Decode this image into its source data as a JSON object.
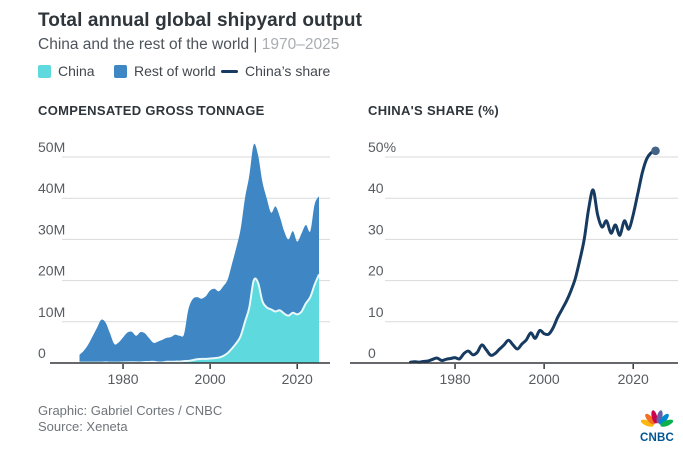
{
  "header": {
    "title": "Total annual global shipyard output",
    "subtitle_main": "China and the rest of the world | ",
    "subtitle_period": "1970–2025"
  },
  "legend": [
    {
      "label": "China",
      "swatch": "square",
      "color": "#5ED9DE"
    },
    {
      "label": "Rest of world",
      "swatch": "square",
      "color": "#3E86C4"
    },
    {
      "label": "China’s share",
      "swatch": "line",
      "color": "#173A60"
    }
  ],
  "colors": {
    "china_fill": "#5ED9DE",
    "china_edge": "#E7F9FA",
    "rest_fill": "#3E86C4",
    "share_line": "#173A60",
    "end_dot": "#456387",
    "gridline": "#D8DADB",
    "axis": "#33373B",
    "axis_label": "#575C62"
  },
  "chart_data": [
    {
      "type": "area",
      "stacked": true,
      "title": "COMPENSATED GROSS TONNAGE",
      "x_range": [
        1970,
        2025
      ],
      "frequency": "annual",
      "unit": "million CGT",
      "ylim": [
        0,
        50
      ],
      "grid": true,
      "yticks": [
        {
          "value": 0,
          "label": "0"
        },
        {
          "value": 10,
          "label": "10M"
        },
        {
          "value": 20,
          "label": "20M"
        },
        {
          "value": 30,
          "label": "30M"
        },
        {
          "value": 40,
          "label": "40M"
        },
        {
          "value": 50,
          "label": "50M"
        }
      ],
      "xticks": [
        {
          "value": 1980,
          "label": "1980"
        },
        {
          "value": 2000,
          "label": "2000"
        },
        {
          "value": 2020,
          "label": "2020"
        }
      ],
      "series": [
        {
          "name": "China",
          "color": "#5ED9DE",
          "values": [
            0.1,
            0.1,
            0.1,
            0.1,
            0.1,
            0.1,
            0.15,
            0.1,
            0.1,
            0.1,
            0.15,
            0.15,
            0.2,
            0.15,
            0.15,
            0.25,
            0.25,
            0.3,
            0.15,
            0.15,
            0.3,
            0.3,
            0.35,
            0.35,
            0.45,
            0.5,
            0.7,
            0.9,
            1.0,
            1.0,
            1.1,
            1.2,
            1.3,
            1.7,
            2.4,
            3.5,
            4.8,
            6.5,
            10.0,
            13.5,
            20.0,
            19.5,
            15.0,
            13.5,
            13.0,
            12.5,
            12.8,
            12.0,
            11.5,
            12.2,
            11.8,
            12.5,
            14.5,
            16.0,
            19.0,
            21.5
          ]
        },
        {
          "name": "Rest of world",
          "color": "#3E86C4",
          "values": [
            1.9,
            2.9,
            4.4,
            6.4,
            8.4,
            10.4,
            9.65,
            7.1,
            4.5,
            4.9,
            6.05,
            7.25,
            7.4,
            6.45,
            7.35,
            6.95,
            5.75,
            4.6,
            5.05,
            5.45,
            5.8,
            6.0,
            6.55,
            6.25,
            6.55,
            12.5,
            14.8,
            15.1,
            14.6,
            15.2,
            16.5,
            16.8,
            16.1,
            16.9,
            17.8,
            20.5,
            23.2,
            26.0,
            30.0,
            32.0,
            33.0,
            31.0,
            29.0,
            26.5,
            23.5,
            25.5,
            22.7,
            20.0,
            18.5,
            19.8,
            17.7,
            19.0,
            19.0,
            16.0,
            19.5,
            19.0
          ]
        }
      ]
    },
    {
      "type": "line",
      "title": "CHINA'S SHARE (%)",
      "x_range": [
        1970,
        2025
      ],
      "frequency": "annual",
      "unit": "percent",
      "ylim": [
        0,
        50
      ],
      "grid": true,
      "end_dot": true,
      "yticks": [
        {
          "value": 0,
          "label": "0"
        },
        {
          "value": 10,
          "label": "10"
        },
        {
          "value": 20,
          "label": "20"
        },
        {
          "value": 30,
          "label": "30"
        },
        {
          "value": 40,
          "label": "40"
        },
        {
          "value": 50,
          "label": "50%"
        }
      ],
      "xticks": [
        {
          "value": 1980,
          "label": "1980"
        },
        {
          "value": 2000,
          "label": "2000"
        },
        {
          "value": 2020,
          "label": "2020"
        }
      ],
      "series": [
        {
          "name": "China’s share",
          "color": "#173A60",
          "values": [
            0.2,
            0.3,
            0.2,
            0.4,
            0.5,
            0.9,
            1.2,
            0.6,
            0.9,
            1.1,
            1.3,
            1.0,
            2.3,
            2.9,
            2.0,
            2.6,
            4.4,
            3.2,
            1.9,
            2.3,
            3.4,
            4.4,
            5.5,
            4.4,
            3.4,
            4.6,
            5.6,
            7.3,
            6.0,
            7.9,
            7.1,
            7.0,
            8.5,
            11.0,
            13.0,
            15.0,
            17.5,
            20.5,
            25.0,
            30.0,
            37.5,
            42.0,
            36.0,
            33.0,
            34.5,
            31.5,
            33.5,
            31.0,
            34.5,
            32.5,
            36.0,
            41.0,
            46.0,
            49.5,
            51.0,
            51.5
          ]
        }
      ]
    }
  ],
  "footer": {
    "credit": "Graphic: Gabriel Cortes / CNBC",
    "source": "Source: Xeneta",
    "logo_text": "CNBC",
    "logo_feather_colors": [
      "#FCB711",
      "#F37021",
      "#CC004C",
      "#6460AA",
      "#0089D0",
      "#0DB14B"
    ]
  }
}
